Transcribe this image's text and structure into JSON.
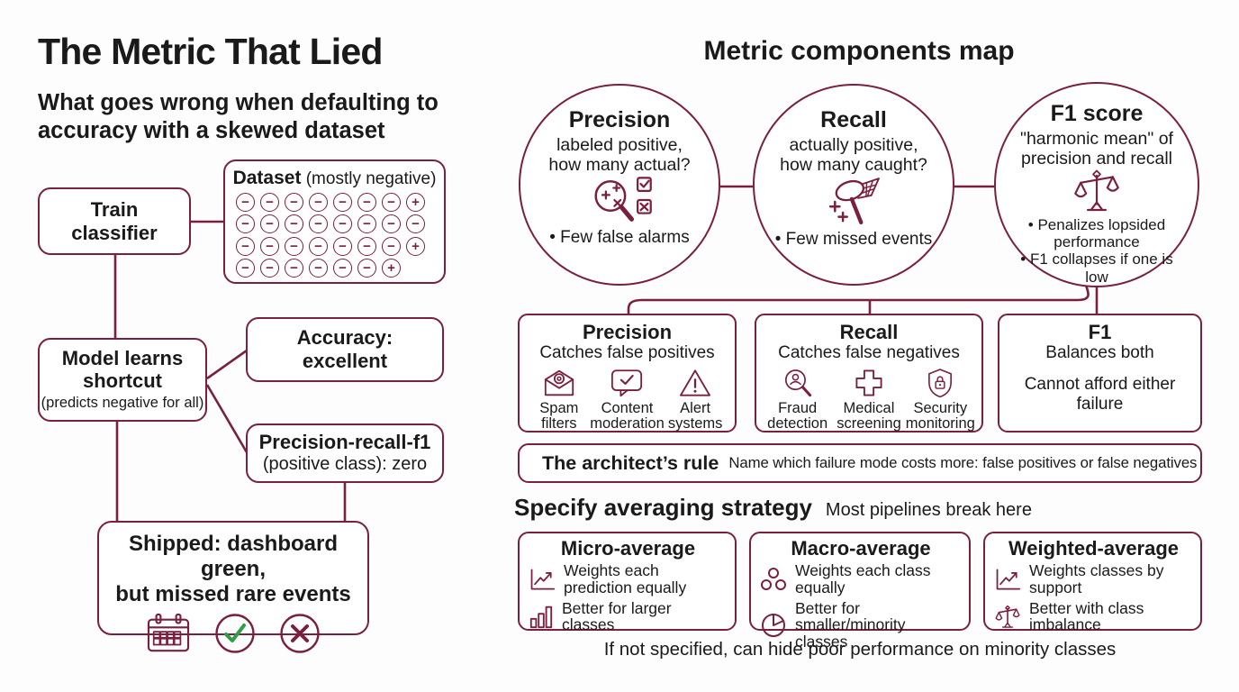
{
  "colors": {
    "accent": "#7a1f3e",
    "text": "#1a1a1a",
    "green": "#2f9e49",
    "background": "#fdfdfd"
  },
  "left_panel": {
    "title": "The Metric That Lied",
    "subtitle": "What goes wrong when defaulting to accuracy with a skewed dataset",
    "train_box": {
      "lines": [
        "Train",
        "classifier"
      ]
    },
    "dataset_box": {
      "title": "Dataset",
      "note": "(mostly negative)",
      "rows": [
        "-------+",
        "--------",
        "-------+",
        "------+"
      ]
    },
    "model_box": {
      "title": "Model learns shortcut",
      "note": "(predicts negative for all)"
    },
    "accuracy_box": {
      "lines": [
        "Accuracy:",
        "excellent"
      ]
    },
    "prf_box": {
      "title": "Precision-recall-f1",
      "detail_prefix": "(positive class): ",
      "detail_value": "zero"
    },
    "shipped_box": {
      "lines": [
        "Shipped: dashboard green,",
        "but missed rare events"
      ],
      "icons": [
        "calendar-icon",
        "check-circle-icon",
        "x-circle-icon"
      ]
    }
  },
  "right_panel": {
    "title": "Metric components map",
    "circles": [
      {
        "title": "Precision",
        "question": "labeled positive, how many actual?",
        "icon": "magnifier-sorting-icon",
        "bullets": [
          "Few false alarms"
        ]
      },
      {
        "title": "Recall",
        "question": "actually positive, how many caught?",
        "icon": "catch-net-icon",
        "bullets": [
          "Few missed events"
        ]
      },
      {
        "title": "F1 score",
        "question": "\"harmonic mean\" of precision and recall",
        "icon": "balance-scale-icon",
        "bullets": [
          "Penalizes lopsided performance",
          "F1 collapses if one is low"
        ]
      }
    ],
    "metric_boxes": [
      {
        "title": "Precision",
        "subtitle": "Catches false positives",
        "items": [
          {
            "icon": "spam-envelope-icon",
            "label": "Spam filters"
          },
          {
            "icon": "content-moderation-icon",
            "label": "Content moderation"
          },
          {
            "icon": "alert-triangle-icon",
            "label": "Alert systems"
          }
        ]
      },
      {
        "title": "Recall",
        "subtitle": "Catches false negatives",
        "items": [
          {
            "icon": "fraud-magnifier-icon",
            "label": "Fraud detection"
          },
          {
            "icon": "medical-cross-icon",
            "label": "Medical screening"
          },
          {
            "icon": "security-shield-icon",
            "label": "Security monitoring"
          }
        ]
      },
      {
        "title": "F1",
        "subtitle": "Balances both",
        "note": "Cannot afford either failure"
      }
    ],
    "rule_bar": {
      "title": "The architect’s rule",
      "text": "Name which failure mode costs more: false positives or false negatives"
    },
    "averaging": {
      "heading": "Specify averaging strategy",
      "subheading": "Most pipelines break here",
      "boxes": [
        {
          "title": "Micro-average",
          "items": [
            {
              "icon": "line-chart-icon",
              "label": "Weights each prediction equally"
            },
            {
              "icon": "bar-chart-icon",
              "label": "Better for larger classes"
            }
          ]
        },
        {
          "title": "Macro-average",
          "items": [
            {
              "icon": "class-cluster-icon",
              "label": "Weights each class equally"
            },
            {
              "icon": "pie-chart-icon",
              "label": "Better for smaller/minority classes"
            }
          ]
        },
        {
          "title": "Weighted-average",
          "items": [
            {
              "icon": "trend-chart-icon",
              "label": "Weights classes by support"
            },
            {
              "icon": "balance-scale-icon",
              "label": "Better with class imbalance"
            }
          ]
        }
      ],
      "footnote": "If not specified, can hide poor performance on minority classes"
    }
  }
}
